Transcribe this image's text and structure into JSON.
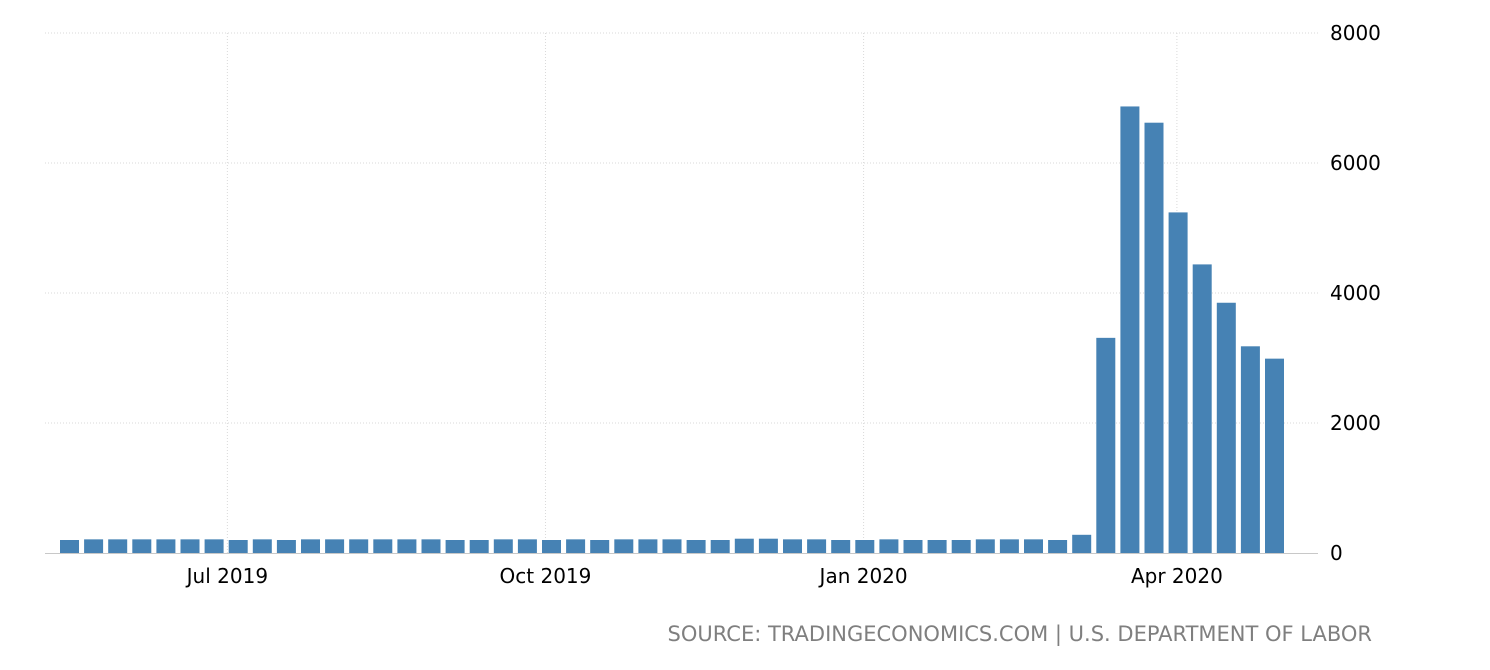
{
  "chart_data": {
    "type": "bar",
    "title": "",
    "xlabel": "",
    "ylabel": "",
    "ylim": [
      0,
      8000
    ],
    "yticks": [
      "0",
      "2000",
      "4000",
      "6000",
      "8000"
    ],
    "xtick_labels": [
      "Jul 2019",
      "Oct 2019",
      "Jan 2020",
      "Apr 2020"
    ],
    "grid": true,
    "bar_color": "#4682b4",
    "values": [
      200,
      210,
      210,
      210,
      210,
      210,
      210,
      200,
      210,
      200,
      210,
      210,
      210,
      210,
      210,
      210,
      200,
      200,
      210,
      210,
      200,
      210,
      200,
      210,
      210,
      210,
      200,
      200,
      220,
      220,
      210,
      210,
      200,
      200,
      210,
      200,
      200,
      200,
      210,
      210,
      210,
      200,
      280,
      3310,
      6870,
      6620,
      5240,
      4440,
      3850,
      3180,
      2990
    ]
  },
  "source": {
    "text": "SOURCE: TRADINGECONOMICS.COM | U.S. DEPARTMENT OF LABOR"
  }
}
